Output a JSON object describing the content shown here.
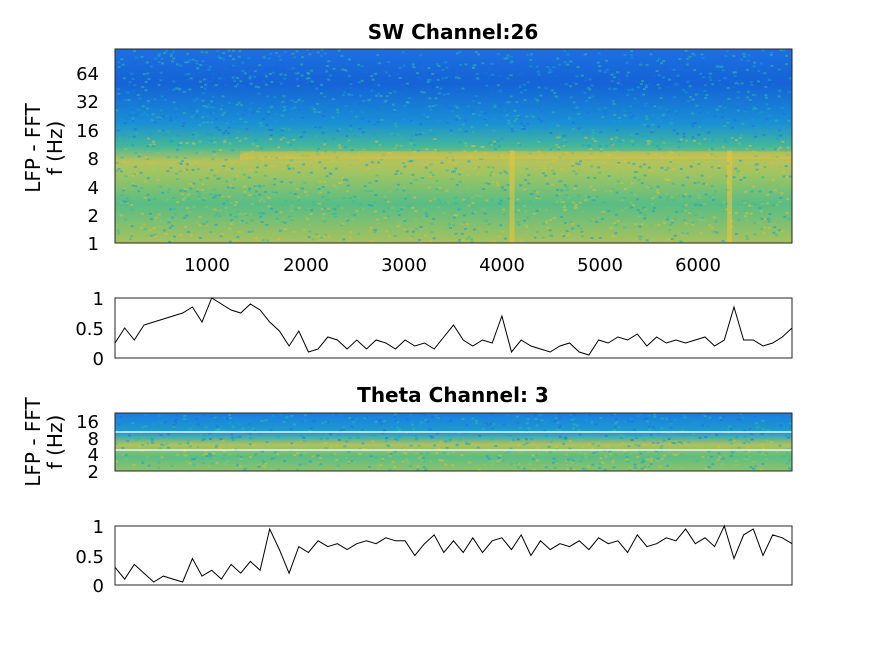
{
  "chart_data": [
    {
      "type": "heatmap",
      "title": "SW Channel:26",
      "ylabel_line1": "LFP - FFT",
      "ylabel_line2": "f (Hz)",
      "y_scale": "log2",
      "yticks": [
        "1",
        "2",
        "4",
        "8",
        "16",
        "32",
        "64"
      ],
      "ylim": [
        1,
        100
      ],
      "xticks": [
        "1000",
        "2000",
        "3000",
        "4000",
        "5000",
        "6000"
      ],
      "xlim": [
        0,
        7000
      ],
      "colormap": "parula",
      "colors": [
        "#3e26a8",
        "#1c6fe0",
        "#13a0d4",
        "#31bba0",
        "#8fc66a",
        "#e4bd3a",
        "#f9fb0e"
      ],
      "band_peak_hz": 8,
      "bright_vertical_events_x": [
        4100,
        6350
      ]
    },
    {
      "type": "line",
      "yticks": [
        "0",
        "0.5",
        "1"
      ],
      "ylim": [
        0,
        1
      ],
      "xlim": [
        0,
        7000
      ],
      "x": [
        0,
        100,
        200,
        300,
        400,
        500,
        600,
        700,
        800,
        900,
        1000,
        1100,
        1200,
        1300,
        1400,
        1500,
        1600,
        1700,
        1800,
        1900,
        2000,
        2100,
        2200,
        2300,
        2400,
        2500,
        2600,
        2700,
        2800,
        2900,
        3000,
        3100,
        3200,
        3300,
        3400,
        3500,
        3600,
        3700,
        3800,
        3900,
        4000,
        4100,
        4200,
        4300,
        4400,
        4500,
        4600,
        4700,
        4800,
        4900,
        5000,
        5100,
        5200,
        5300,
        5400,
        5500,
        5600,
        5700,
        5800,
        5900,
        6000,
        6100,
        6200,
        6300,
        6400,
        6500,
        6600,
        6700,
        6800,
        6900,
        7000
      ],
      "values": [
        0.25,
        0.5,
        0.3,
        0.55,
        0.6,
        0.65,
        0.7,
        0.75,
        0.85,
        0.6,
        1.0,
        0.9,
        0.8,
        0.75,
        0.9,
        0.8,
        0.6,
        0.45,
        0.2,
        0.45,
        0.1,
        0.15,
        0.35,
        0.3,
        0.15,
        0.3,
        0.15,
        0.3,
        0.25,
        0.15,
        0.3,
        0.2,
        0.25,
        0.15,
        0.35,
        0.55,
        0.3,
        0.2,
        0.3,
        0.25,
        0.7,
        0.1,
        0.3,
        0.2,
        0.15,
        0.1,
        0.2,
        0.25,
        0.1,
        0.05,
        0.3,
        0.25,
        0.35,
        0.3,
        0.4,
        0.2,
        0.35,
        0.25,
        0.3,
        0.25,
        0.3,
        0.35,
        0.2,
        0.3,
        0.85,
        0.3,
        0.3,
        0.2,
        0.25,
        0.35,
        0.5
      ]
    },
    {
      "type": "heatmap",
      "title": "Theta Channel: 3",
      "ylabel_line1": "LFP - FFT",
      "ylabel_line2": "f (Hz)",
      "y_scale": "log2",
      "yticks": [
        "2",
        "4",
        "8",
        "16"
      ],
      "ylim": [
        2,
        20
      ],
      "xlim": [
        0,
        7000
      ],
      "colormap": "parula",
      "horizontal_lines_hz": [
        5,
        10
      ]
    },
    {
      "type": "line",
      "yticks": [
        "0",
        "0.5",
        "1"
      ],
      "ylim": [
        0,
        1
      ],
      "xlim": [
        0,
        7000
      ],
      "x": [
        0,
        100,
        200,
        300,
        400,
        500,
        600,
        700,
        800,
        900,
        1000,
        1100,
        1200,
        1300,
        1400,
        1500,
        1600,
        1700,
        1800,
        1900,
        2000,
        2100,
        2200,
        2300,
        2400,
        2500,
        2600,
        2700,
        2800,
        2900,
        3000,
        3100,
        3200,
        3300,
        3400,
        3500,
        3600,
        3700,
        3800,
        3900,
        4000,
        4100,
        4200,
        4300,
        4400,
        4500,
        4600,
        4700,
        4800,
        4900,
        5000,
        5100,
        5200,
        5300,
        5400,
        5500,
        5600,
        5700,
        5800,
        5900,
        6000,
        6100,
        6200,
        6300,
        6400,
        6500,
        6600,
        6700,
        6800,
        6900,
        7000
      ],
      "values": [
        0.3,
        0.1,
        0.35,
        0.2,
        0.05,
        0.15,
        0.1,
        0.05,
        0.45,
        0.15,
        0.25,
        0.1,
        0.35,
        0.2,
        0.4,
        0.25,
        0.95,
        0.6,
        0.2,
        0.65,
        0.55,
        0.75,
        0.65,
        0.7,
        0.6,
        0.7,
        0.75,
        0.7,
        0.8,
        0.75,
        0.75,
        0.5,
        0.7,
        0.85,
        0.55,
        0.75,
        0.55,
        0.8,
        0.55,
        0.75,
        0.8,
        0.6,
        0.85,
        0.5,
        0.75,
        0.6,
        0.7,
        0.65,
        0.75,
        0.6,
        0.8,
        0.7,
        0.75,
        0.55,
        0.85,
        0.65,
        0.7,
        0.8,
        0.75,
        0.95,
        0.7,
        0.8,
        0.65,
        1.0,
        0.45,
        0.85,
        0.95,
        0.5,
        0.85,
        0.8,
        0.7
      ]
    }
  ]
}
